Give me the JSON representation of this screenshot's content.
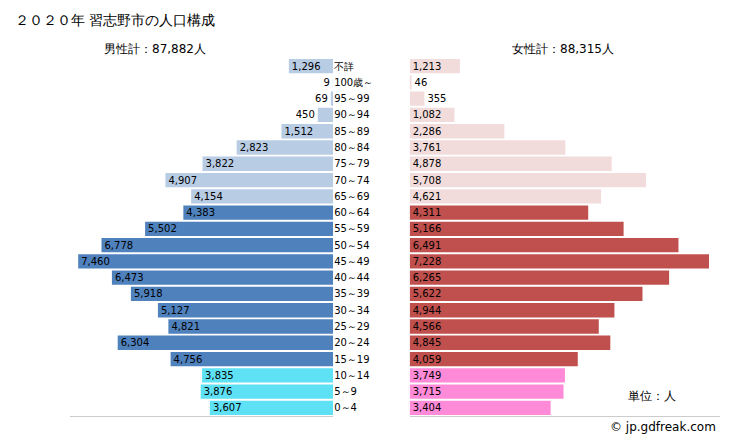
{
  "chart_data": {
    "type": "bar",
    "orientation": "horizontal",
    "title": "２０２０年 習志野市の人口構成",
    "data_labels": true,
    "tick_labels": "y",
    "annotations": [
      "単位：人",
      "© jp.gdfreak.com"
    ],
    "categories": [
      "不詳",
      "100歳～",
      "95～99",
      "90～94",
      "85～89",
      "80～84",
      "75～79",
      "70～74",
      "65～69",
      "60～64",
      "55～59",
      "50～54",
      "45～49",
      "40～44",
      "35～39",
      "30～34",
      "25～29",
      "20～24",
      "15～19",
      "10～14",
      "5～9",
      "0～4"
    ],
    "series": [
      {
        "name": "男性計：87,882人",
        "xlim": [
          7700,
          0
        ],
        "values": [
          1296,
          9,
          69,
          450,
          1512,
          2823,
          3822,
          4907,
          4154,
          4383,
          5502,
          6778,
          7460,
          6473,
          5918,
          5127,
          4821,
          6304,
          4756,
          3835,
          3876,
          3607
        ],
        "value_labels": [
          "1,296",
          "9",
          "69",
          "450",
          "1,512",
          "2,823",
          "3,822",
          "4,907",
          "4,154",
          "4,383",
          "5,502",
          "6,778",
          "7,460",
          "6,473",
          "5,918",
          "5,127",
          "4,821",
          "6,304",
          "4,756",
          "3,835",
          "3,876",
          "3,607"
        ],
        "colors": [
          "#b8cce4",
          "#b8cce4",
          "#b8cce4",
          "#b8cce4",
          "#b8cce4",
          "#b8cce4",
          "#b8cce4",
          "#b8cce4",
          "#b8cce4",
          "#4f81bd",
          "#4f81bd",
          "#4f81bd",
          "#4f81bd",
          "#4f81bd",
          "#4f81bd",
          "#4f81bd",
          "#4f81bd",
          "#4f81bd",
          "#4f81bd",
          "#5ee0f5",
          "#5ee0f5",
          "#5ee0f5"
        ]
      },
      {
        "name": "女性計：88,315人",
        "xlim": [
          0,
          7500
        ],
        "values": [
          1213,
          46,
          355,
          1082,
          2286,
          3761,
          4878,
          5708,
          4621,
          4311,
          5166,
          6491,
          7228,
          6265,
          5622,
          4944,
          4566,
          4845,
          4059,
          3749,
          3715,
          3404
        ],
        "value_labels": [
          "1,213",
          "46",
          "355",
          "1,082",
          "2,286",
          "3,761",
          "4,878",
          "5,708",
          "4,621",
          "4,311",
          "5,166",
          "6,491",
          "7,228",
          "6,265",
          "5,622",
          "4,944",
          "4,566",
          "4,845",
          "4,059",
          "3,749",
          "3,715",
          "3,404"
        ],
        "colors": [
          "#f2dcdb",
          "#f2dcdb",
          "#f2dcdb",
          "#f2dcdb",
          "#f2dcdb",
          "#f2dcdb",
          "#f2dcdb",
          "#f2dcdb",
          "#f2dcdb",
          "#c0504d",
          "#c0504d",
          "#c0504d",
          "#c0504d",
          "#c0504d",
          "#c0504d",
          "#c0504d",
          "#c0504d",
          "#c0504d",
          "#c0504d",
          "#ff8ad8",
          "#ff8ad8",
          "#ff8ad8"
        ]
      }
    ]
  }
}
